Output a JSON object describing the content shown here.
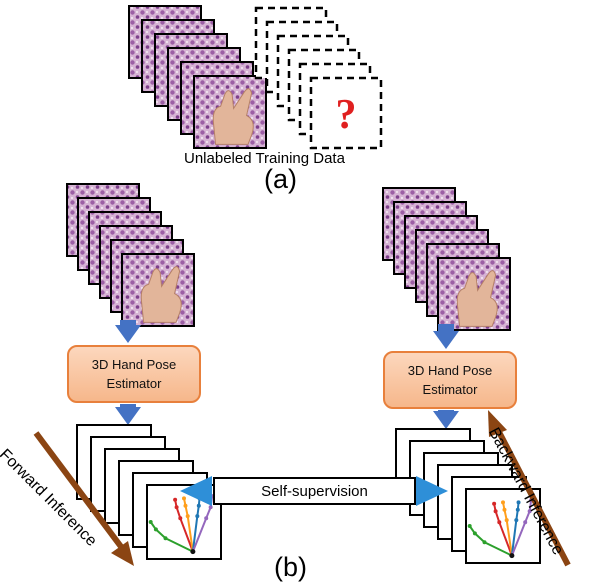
{
  "panel_a": {
    "caption": "Unlabeled Training Data",
    "label": "(a)",
    "unknown_mark": "?"
  },
  "panel_b": {
    "label": "(b)",
    "estimator_left": {
      "line1": "3D Hand Pose",
      "line2": "Estimator"
    },
    "estimator_right": {
      "line1": "3D Hand Pose",
      "line2": "Estimator"
    },
    "self_supervision": "Self-supervision",
    "forward_label": "Forward Inference",
    "backward_label": "Backward Inference"
  },
  "colors": {
    "arrow_blue": "#4472c4",
    "estimator_fill": "#f8c8a4",
    "estimator_border": "#e8803c",
    "inference_arrow": "#8b4513",
    "question_mark": "#e02020"
  },
  "icons": [
    "hand-photo-stack-icon",
    "question-mark-icon",
    "pose-skeleton-icon",
    "down-arrow-icon",
    "double-arrow-icon"
  ]
}
